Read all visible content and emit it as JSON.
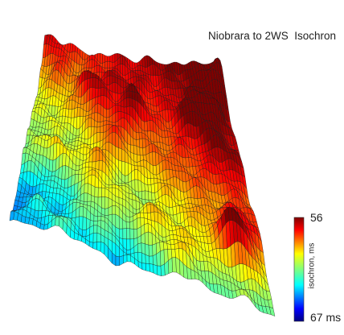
{
  "chart_data": {
    "type": "surface",
    "title": "Niobrara to 2WS  Isochron",
    "colorbar": {
      "label": "isochron, ms",
      "top_tick": "56",
      "bottom_tick": "67 ms",
      "range": [
        56,
        67
      ],
      "colormap": "jet",
      "reversed": true
    },
    "grid": "mesh lines on",
    "legend_placement": "bottom-right"
  }
}
